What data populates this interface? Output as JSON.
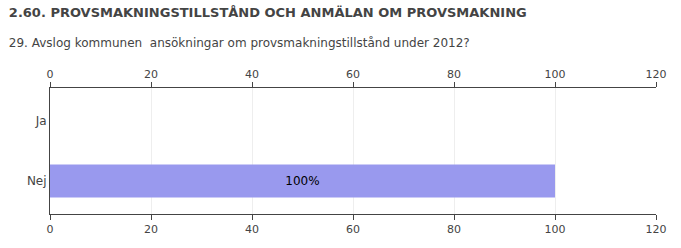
{
  "chart_data": {
    "type": "bar",
    "orientation": "horizontal",
    "title": "2.60. PROVSMAKNINGSTILLSTÅND OCH ANMÄLAN OM PROVSMAKNING",
    "subtitle": "29. Avslog kommunen  ansökningar om provsmakningstillstånd under 2012?",
    "categories": [
      "Nej",
      "Ja"
    ],
    "values": [
      100,
      0
    ],
    "value_labels": [
      "100%",
      null
    ],
    "data_labels": true,
    "color": "#9999ee",
    "xlim": [
      0,
      120
    ],
    "xticks": [
      0,
      20,
      40,
      60,
      80,
      100,
      120
    ],
    "grid": true
  }
}
